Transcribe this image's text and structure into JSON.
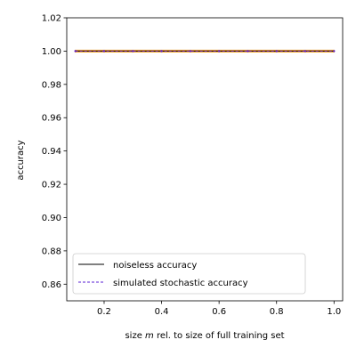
{
  "chart_data": {
    "type": "line",
    "title": "",
    "xlabel_pre": "size ",
    "xlabel_var": "m",
    "xlabel_post": " rel. to size of full training set",
    "ylabel": "accuracy",
    "xlim": [
      0.07,
      1.03
    ],
    "ylim": [
      0.85,
      1.02
    ],
    "x_ticks": [
      0.2,
      0.4,
      0.6,
      0.8,
      1.0
    ],
    "x_tick_labels": [
      "0.2",
      "0.4",
      "0.6",
      "0.8",
      "1.0"
    ],
    "y_ticks": [
      0.86,
      0.88,
      0.9,
      0.92,
      0.94,
      0.96,
      0.98,
      1.0,
      1.02
    ],
    "y_tick_labels": [
      "0.86",
      "0.88",
      "0.90",
      "0.92",
      "0.94",
      "0.96",
      "0.98",
      "1.00",
      "1.02"
    ],
    "grid": false,
    "legend_position": "lower-left",
    "series": [
      {
        "name": "noiseless accuracy",
        "color": "#000000",
        "style": "solid",
        "x": [
          0.1,
          0.2,
          0.3,
          0.4,
          0.5,
          0.6,
          0.7,
          0.8,
          0.9,
          1.0
        ],
        "y": [
          1.0,
          1.0,
          1.0,
          1.0,
          1.0,
          1.0,
          1.0,
          1.0,
          1.0,
          1.0
        ]
      },
      {
        "name": "simulated stochastic accuracy",
        "color": "#5a1fd6",
        "style": "dashed",
        "x": [
          0.1,
          0.2,
          0.3,
          0.4,
          0.5,
          0.6,
          0.7,
          0.8,
          0.9,
          1.0
        ],
        "y": [
          1.0,
          1.0,
          1.0,
          1.0,
          1.0,
          1.0,
          1.0,
          1.0,
          1.0,
          1.0
        ]
      }
    ],
    "band": {
      "color": "#f5a623",
      "x": [
        0.1,
        1.0
      ],
      "y_low": [
        0.9995,
        0.9995
      ],
      "y_high": [
        1.0005,
        1.0005
      ]
    }
  }
}
